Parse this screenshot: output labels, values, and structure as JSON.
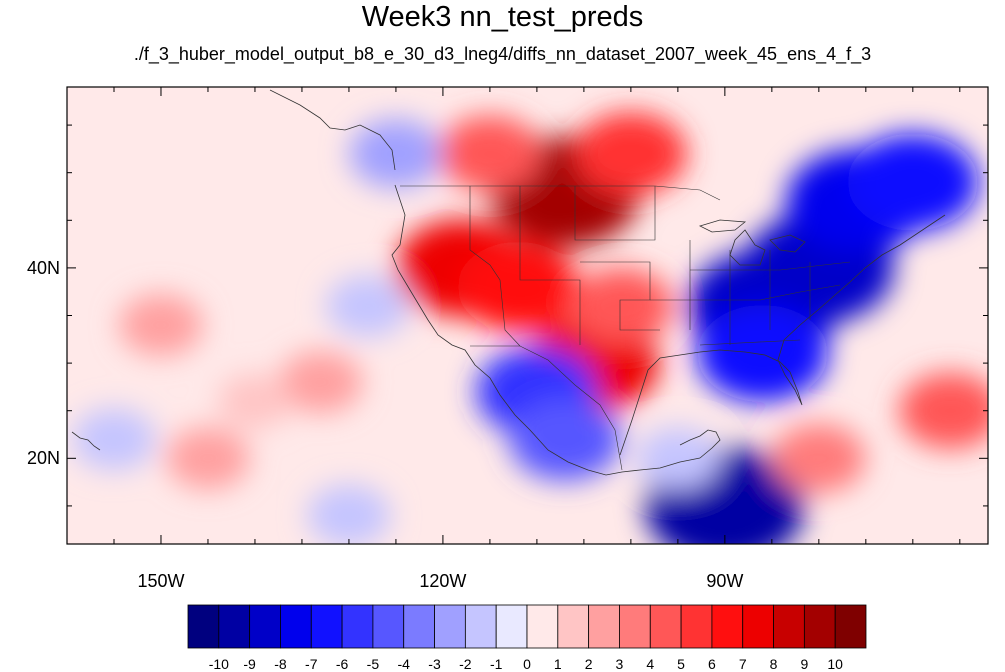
{
  "title": "Week3 nn_test_preds",
  "subtitle": "./f_3_huber_model_output_b8_e_30_d3_lneg4/diffs_nn_dataset_2007_week_45_ens_4_f_3",
  "map": {
    "lon_range": [
      -160,
      -62
    ],
    "lat_range": [
      11,
      59
    ],
    "x_tick_labels": [
      {
        "lon": -150,
        "label": "150W"
      },
      {
        "lon": -120,
        "label": "120W"
      },
      {
        "lon": -90,
        "label": "90W"
      }
    ],
    "y_tick_labels": [
      {
        "lat": 40,
        "label": "40N"
      },
      {
        "lat": 20,
        "label": "20N"
      }
    ],
    "field_anomalies": [
      {
        "lon": -107,
        "lat": 48,
        "value": 9
      },
      {
        "lon": -100,
        "lat": 52,
        "value": 5
      },
      {
        "lon": -115,
        "lat": 52,
        "value": 4
      },
      {
        "lon": -118,
        "lat": 40,
        "value": 7
      },
      {
        "lon": -112,
        "lat": 38,
        "value": 6
      },
      {
        "lon": -104,
        "lat": 30,
        "value": 7
      },
      {
        "lon": -101,
        "lat": 36,
        "value": 4
      },
      {
        "lon": -86,
        "lat": 36,
        "value": -9
      },
      {
        "lon": -80,
        "lat": 40,
        "value": -9
      },
      {
        "lon": -76,
        "lat": 47,
        "value": -8
      },
      {
        "lon": -70,
        "lat": 49,
        "value": -7
      },
      {
        "lon": -86,
        "lat": 31,
        "value": -7
      },
      {
        "lon": -110,
        "lat": 27,
        "value": -6
      },
      {
        "lon": -107,
        "lat": 22,
        "value": -5
      },
      {
        "lon": -90,
        "lat": 15,
        "value": -10
      },
      {
        "lon": -150,
        "lat": 34,
        "value": 2
      },
      {
        "lon": -133,
        "lat": 28,
        "value": 2
      },
      {
        "lon": -145,
        "lat": 20,
        "value": 2
      },
      {
        "lon": -140,
        "lat": 26,
        "value": 1
      },
      {
        "lon": -125,
        "lat": 52,
        "value": -3
      },
      {
        "lon": -128,
        "lat": 36,
        "value": -2
      },
      {
        "lon": -155,
        "lat": 22,
        "value": -2
      },
      {
        "lon": -66,
        "lat": 25,
        "value": 4
      },
      {
        "lon": -80,
        "lat": 20,
        "value": 3
      },
      {
        "lon": -130,
        "lat": 14,
        "value": -2
      },
      {
        "lon": -95,
        "lat": 20,
        "value": -2
      }
    ]
  },
  "colorbar": {
    "colors": [
      "#00007f",
      "#0000a3",
      "#0000c8",
      "#0000ed",
      "#1111ff",
      "#3333ff",
      "#5757ff",
      "#7b7bff",
      "#a0a0ff",
      "#c5c5ff",
      "#e9e9ff",
      "#ffe9e9",
      "#ffc5c5",
      "#ffa0a0",
      "#ff7b7b",
      "#ff5757",
      "#ff3333",
      "#ff0f0f",
      "#ed0000",
      "#c80000",
      "#a30000",
      "#7f0000"
    ],
    "labels": [
      "-10",
      "-9",
      "-8",
      "-7",
      "-6",
      "-5",
      "-4",
      "-3",
      "-2",
      "-1",
      "0",
      "1",
      "2",
      "3",
      "4",
      "5",
      "6",
      "7",
      "8",
      "9",
      "10"
    ]
  }
}
